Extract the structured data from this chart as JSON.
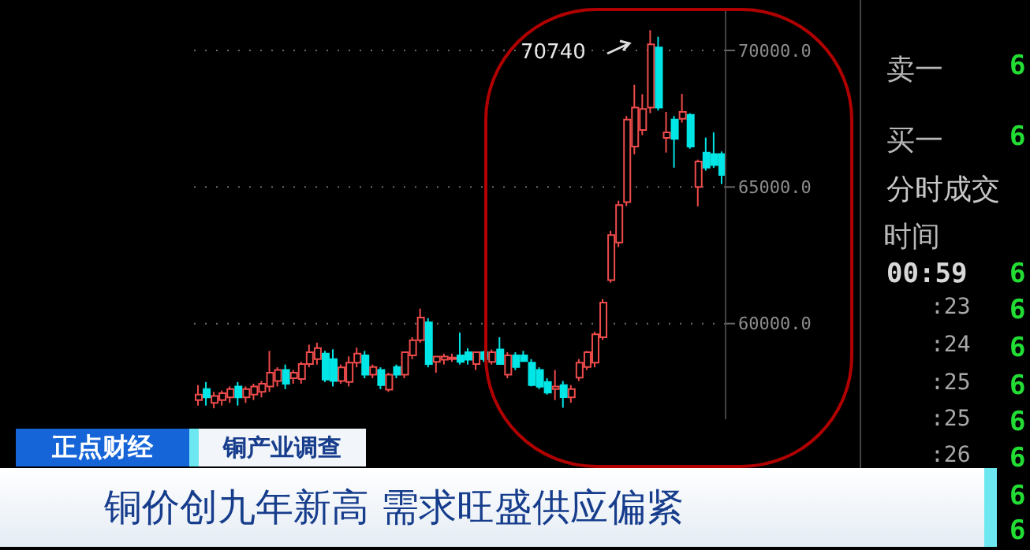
{
  "chart_data": {
    "type": "candlestick",
    "title": "铜价创九年新高 需求旺盛供应偏紧",
    "categories": [
      null,
      null,
      null,
      null,
      null,
      null,
      null,
      null,
      null,
      null,
      null,
      null,
      null,
      null,
      null,
      null,
      null,
      null,
      null,
      null,
      null,
      null,
      null,
      null,
      null,
      null,
      null,
      null,
      null,
      null,
      null,
      null,
      null,
      null,
      null,
      null,
      null,
      null,
      null,
      null,
      null,
      null,
      null,
      null,
      null,
      null,
      null,
      null,
      null,
      null,
      null,
      null,
      null,
      null,
      null,
      null,
      null,
      null,
      null,
      null,
      null,
      null,
      null,
      null,
      null,
      null,
      null
    ],
    "ohlc": [
      [
        57200,
        57750,
        57000,
        57400
      ],
      [
        57600,
        57860,
        57000,
        57300
      ],
      [
        57100,
        57500,
        56900,
        57350
      ],
      [
        57200,
        57550,
        57000,
        57450
      ],
      [
        57300,
        57700,
        57100,
        57600
      ],
      [
        57700,
        57860,
        57000,
        57300
      ],
      [
        57300,
        57700,
        57100,
        57600
      ],
      [
        57400,
        57800,
        57200,
        57700
      ],
      [
        57500,
        57900,
        57300,
        57800
      ],
      [
        57700,
        59000,
        57500,
        58200
      ],
      [
        57900,
        58400,
        57700,
        58300
      ],
      [
        58300,
        58500,
        57600,
        57800
      ],
      [
        58000,
        58300,
        57800,
        58200
      ],
      [
        57970,
        58600,
        57800,
        58520
      ],
      [
        58520,
        59230,
        58400,
        58950
      ],
      [
        58700,
        59300,
        58500,
        59100
      ],
      [
        58900,
        59000,
        57860,
        57950
      ],
      [
        58700,
        59060,
        57700,
        57900
      ],
      [
        57900,
        58500,
        57800,
        58400
      ],
      [
        57860,
        58800,
        57700,
        58570
      ],
      [
        58570,
        59120,
        58400,
        58900
      ],
      [
        58840,
        59000,
        58000,
        58130
      ],
      [
        58130,
        58500,
        58000,
        58410
      ],
      [
        58300,
        58400,
        57600,
        57750
      ],
      [
        57580,
        58200,
        57500,
        58130
      ],
      [
        58410,
        58500,
        58000,
        58130
      ],
      [
        58130,
        58950,
        58000,
        58950
      ],
      [
        58840,
        59500,
        58700,
        59390
      ],
      [
        59390,
        60550,
        59300,
        60220
      ],
      [
        60050,
        60200,
        58400,
        58520
      ],
      [
        58600,
        58790,
        58200,
        58790
      ],
      [
        58680,
        58900,
        58500,
        58790
      ],
      [
        58700,
        58900,
        58600,
        58760
      ],
      [
        58840,
        59670,
        58500,
        58600
      ],
      [
        58950,
        59100,
        58500,
        58680
      ],
      [
        58520,
        58950,
        58300,
        58950
      ],
      [
        58950,
        59000,
        58600,
        58700
      ],
      [
        58600,
        59050,
        58500,
        58950
      ],
      [
        59050,
        59500,
        58500,
        58520
      ],
      [
        58130,
        58950,
        58000,
        58840
      ],
      [
        58840,
        58950,
        58300,
        58410
      ],
      [
        58840,
        59000,
        58600,
        58630
      ],
      [
        58570,
        58700,
        57700,
        57750
      ],
      [
        58300,
        58400,
        57600,
        57690
      ],
      [
        57860,
        58000,
        57400,
        57470
      ],
      [
        57600,
        58300,
        57200,
        57700
      ],
      [
        57750,
        57900,
        56920,
        57310
      ],
      [
        57300,
        57750,
        57100,
        57600
      ],
      [
        58020,
        58700,
        57900,
        58570
      ],
      [
        58410,
        59000,
        58300,
        58950
      ],
      [
        58570,
        59700,
        58400,
        59610
      ],
      [
        59500,
        60900,
        59400,
        60770
      ],
      [
        61590,
        63400,
        61500,
        63240
      ],
      [
        62970,
        64500,
        62800,
        64340
      ],
      [
        64450,
        67600,
        64300,
        67470
      ],
      [
        66480,
        68740,
        66200,
        67910
      ],
      [
        67090,
        68400,
        66900,
        67860
      ],
      [
        67910,
        70740,
        67700,
        70220
      ],
      [
        70110,
        70500,
        67800,
        67910
      ],
      [
        66800,
        67750,
        66260,
        67000
      ],
      [
        67470,
        67600,
        65710,
        66760
      ],
      [
        67500,
        68410,
        67360,
        67750
      ],
      [
        67640,
        67700,
        66400,
        66480
      ],
      [
        65000,
        66000,
        64290,
        65930
      ],
      [
        66260,
        66810,
        65600,
        65710
      ],
      [
        66210,
        67000,
        65700,
        65800
      ],
      [
        66210,
        66300,
        65110,
        65440
      ]
    ],
    "colors": [
      "#ef4b4b",
      "#00e5e5",
      "#ef4b4b",
      "#ef4b4b",
      "#ef4b4b",
      "#00e5e5",
      "#ef4b4b",
      "#ef4b4b",
      "#ef4b4b",
      "#ef4b4b",
      "#ef4b4b",
      "#00e5e5",
      "#ef4b4b",
      "#ef4b4b",
      "#ef4b4b",
      "#ef4b4b",
      "#00e5e5",
      "#00e5e5",
      "#ef4b4b",
      "#ef4b4b",
      "#ef4b4b",
      "#00e5e5",
      "#ef4b4b",
      "#00e5e5",
      "#ef4b4b",
      "#00e5e5",
      "#ef4b4b",
      "#ef4b4b",
      "#ef4b4b",
      "#00e5e5",
      "#ef4b4b",
      "#ef4b4b",
      "#ef4b4b",
      "#00e5e5",
      "#00e5e5",
      "#ef4b4b",
      "#00e5e5",
      "#ef4b4b",
      "#00e5e5",
      "#ef4b4b",
      "#00e5e5",
      "#00e5e5",
      "#00e5e5",
      "#00e5e5",
      "#00e5e5",
      "#ef4b4b",
      "#00e5e5",
      "#ef4b4b",
      "#ef4b4b",
      "#ef4b4b",
      "#ef4b4b",
      "#ef4b4b",
      "#ef4b4b",
      "#ef4b4b",
      "#ef4b4b",
      "#ef4b4b",
      "#ef4b4b",
      "#ef4b4b",
      "#00e5e5",
      "#ef4b4b",
      "#00e5e5",
      "#ef4b4b",
      "#00e5e5",
      "#ef4b4b",
      "#00e5e5",
      "#00e5e5",
      "#00e5e5"
    ],
    "ylim": [
      56500,
      71500
    ],
    "yticks": [
      {
        "value": 60000,
        "label": "60000.0"
      },
      {
        "value": 65000,
        "label": "65000.0"
      },
      {
        "value": 70000,
        "label": "70000.0"
      }
    ],
    "grid": "y",
    "annotations": [
      "70740",
      "正点财经",
      "铜产业调查",
      "卖一",
      "买一",
      "分时成交",
      "时间",
      "00:59",
      ":23",
      ":24",
      ":25",
      ":25",
      ":26",
      "6",
      "6",
      "6",
      "6",
      "6",
      "6",
      "6",
      "6",
      "6",
      "6"
    ]
  }
}
